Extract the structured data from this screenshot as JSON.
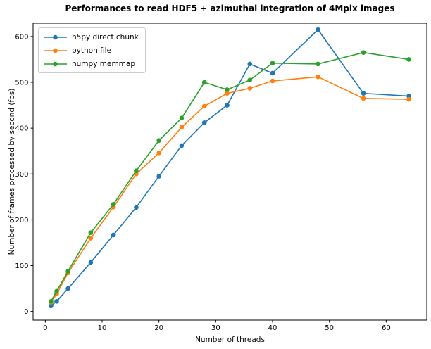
{
  "chart_data": {
    "type": "line",
    "title": "Performances to read HDF5 + azimuthal integration of 4Mpix images",
    "xlabel": "Number of threads",
    "ylabel": "Number of frames processed by second (fps)",
    "x": [
      1,
      2,
      4,
      8,
      12,
      16,
      20,
      24,
      28,
      32,
      36,
      40,
      48,
      56,
      64
    ],
    "series": [
      {
        "name": "h5py direct chunk",
        "color": "#1f77b4",
        "values": [
          12,
          22,
          50,
          107,
          167,
          227,
          295,
          362,
          412,
          450,
          540,
          520,
          615,
          476,
          470
        ]
      },
      {
        "name": "python file",
        "color": "#ff7f0e",
        "values": [
          20,
          38,
          84,
          160,
          228,
          300,
          346,
          402,
          448,
          476,
          487,
          503,
          512,
          465,
          463
        ]
      },
      {
        "name": "numpy memmap",
        "color": "#2ca02c",
        "values": [
          22,
          44,
          88,
          172,
          234,
          307,
          373,
          422,
          500,
          484,
          505,
          542,
          540,
          565,
          550
        ]
      }
    ],
    "xticks": [
      0,
      10,
      20,
      30,
      40,
      50,
      60
    ],
    "yticks": [
      0,
      100,
      200,
      300,
      400,
      500,
      600
    ],
    "xlim": [
      -2.15,
      67.15
    ],
    "ylim": [
      -19,
      629
    ],
    "grid": false,
    "legend_position": "upper left",
    "axis_color": "#000000",
    "marker": "circle"
  }
}
